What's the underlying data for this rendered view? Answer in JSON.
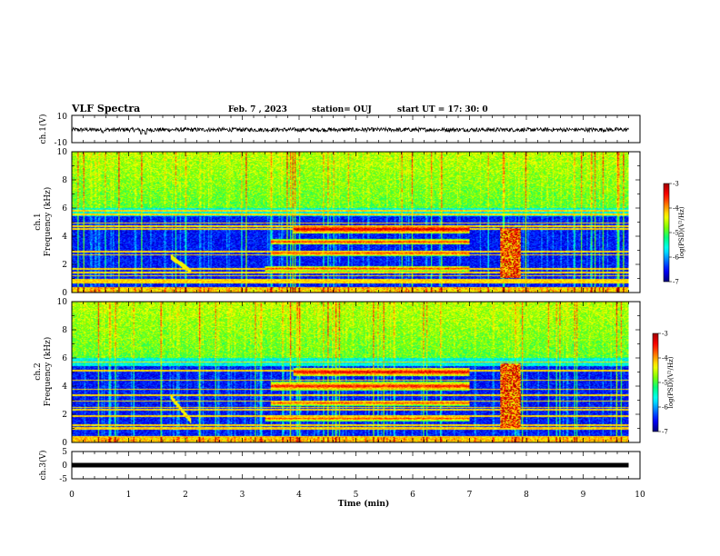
{
  "header": {
    "title": "VLF Spectra",
    "date": "Feb. 7 , 2023",
    "station": "station= OUJ",
    "start": "start  UT  =   17: 30: 0"
  },
  "chart_data": [
    {
      "type": "line",
      "panel": "ch1-waveform",
      "ylabel": "ch.1(V)",
      "ylim": [
        -10,
        10
      ],
      "ytick_labels": [
        "10",
        "-10"
      ],
      "x_range_min": [
        0,
        9.8
      ],
      "baseline_v": -0.5,
      "noise_amplitude_v": 1.5,
      "spikes": [
        {
          "t_min": 0.55,
          "v": -2.8
        },
        {
          "t_min": 1.22,
          "v": -3.6
        },
        {
          "t_min": 1.3,
          "v": -3.8
        },
        {
          "t_min": 5.8,
          "v": -1.8
        },
        {
          "t_min": 8.0,
          "v": -1.2
        }
      ]
    },
    {
      "type": "heatmap",
      "panel": "ch1-spectrogram",
      "ylabel": "Frequency (kHz)",
      "channel": "ch.1",
      "ylim": [
        0,
        10
      ],
      "xlim": [
        0,
        10
      ],
      "data_end_min": 9.8,
      "ytick_labels": [
        "0",
        "2",
        "4",
        "6",
        "8",
        "10"
      ],
      "colorbar": {
        "label": "log(PSD)(V²/Hz)",
        "range": [
          -7,
          -3
        ],
        "tick_labels": [
          "-3",
          "-4",
          "-5",
          "-6",
          "-7"
        ]
      },
      "features": [
        {
          "name": "high-band noise",
          "f_khz": [
            6,
            10
          ],
          "level": -4.6
        },
        {
          "name": "band 4.5 kHz",
          "f_khz": [
            4.2,
            4.8
          ],
          "t_min": [
            3.9,
            7.0
          ],
          "level": -3.5
        },
        {
          "name": "band 3.6 kHz",
          "f_khz": [
            3.4,
            3.8
          ],
          "t_min": [
            3.5,
            7.0
          ],
          "level": -3.8
        },
        {
          "name": "band 2.8 kHz",
          "f_khz": [
            2.6,
            3.0
          ],
          "t_min": [
            3.5,
            7.0
          ],
          "level": -3.9
        },
        {
          "name": "band 1.7 kHz",
          "f_khz": [
            1.5,
            1.9
          ],
          "t_min": [
            3.4,
            7.0
          ],
          "level": -3.9
        },
        {
          "name": "burst 7.6-7.9 min",
          "f_khz": [
            1.0,
            4.6
          ],
          "t_min": [
            7.55,
            7.9
          ],
          "level": -3.7
        },
        {
          "name": "dispersed whistler",
          "t_min": [
            1.75,
            2.1
          ],
          "f_khz": [
            1.5,
            2.5
          ],
          "level": -4.5
        }
      ]
    },
    {
      "type": "heatmap",
      "panel": "ch2-spectrogram",
      "ylabel": "Frequency (kHz)",
      "channel": "ch.2",
      "ylim": [
        0,
        10
      ],
      "xlim": [
        0,
        10
      ],
      "data_end_min": 9.8,
      "ytick_labels": [
        "0",
        "2",
        "4",
        "6",
        "8",
        "10"
      ],
      "colorbar": {
        "label": "log(PSD)(V²/Hz)",
        "range": [
          -7,
          -3
        ],
        "tick_labels": [
          "-3",
          "-4",
          "-5",
          "-6",
          "-7"
        ]
      },
      "features": [
        {
          "name": "high-band noise",
          "f_khz": [
            6,
            10
          ],
          "level": -4.4
        },
        {
          "name": "band 5 kHz",
          "f_khz": [
            4.7,
            5.3
          ],
          "t_min": [
            3.9,
            7.0
          ],
          "level": -3.6
        },
        {
          "name": "band 4 kHz",
          "f_khz": [
            3.7,
            4.3
          ],
          "t_min": [
            3.5,
            7.0
          ],
          "level": -3.7
        },
        {
          "name": "band 2.8 kHz",
          "f_khz": [
            2.6,
            3.0
          ],
          "t_min": [
            3.5,
            7.0
          ],
          "level": -3.9
        },
        {
          "name": "band 1.7 kHz",
          "f_khz": [
            1.5,
            1.9
          ],
          "t_min": [
            3.4,
            7.0
          ],
          "level": -3.9
        },
        {
          "name": "burst 7.6-7.9 min",
          "f_khz": [
            1.0,
            5.6
          ],
          "t_min": [
            7.55,
            7.9
          ],
          "level": -3.7
        },
        {
          "name": "dispersed whistler",
          "t_min": [
            1.75,
            2.1
          ],
          "f_khz": [
            1.5,
            3.2
          ],
          "level": -4.5
        }
      ]
    },
    {
      "type": "line",
      "panel": "ch3-waveform",
      "ylabel": "ch.3(V)",
      "ylim": [
        -5,
        5
      ],
      "ytick_labels": [
        "5",
        "0",
        "-5"
      ],
      "x_range_min": [
        0,
        9.8
      ],
      "constant_v": 0.0,
      "xlabel": "Time (min)",
      "xlim": [
        0,
        10
      ],
      "xtick_labels": [
        "0",
        "1",
        "2",
        "3",
        "4",
        "5",
        "6",
        "7",
        "8",
        "9",
        "10"
      ]
    }
  ],
  "colors": {
    "colormap": [
      "#00007a",
      "#0000ff",
      "#0080ff",
      "#00ffff",
      "#00ff80",
      "#80ff00",
      "#ffff00",
      "#ff8000",
      "#ff0000",
      "#a00000"
    ]
  }
}
